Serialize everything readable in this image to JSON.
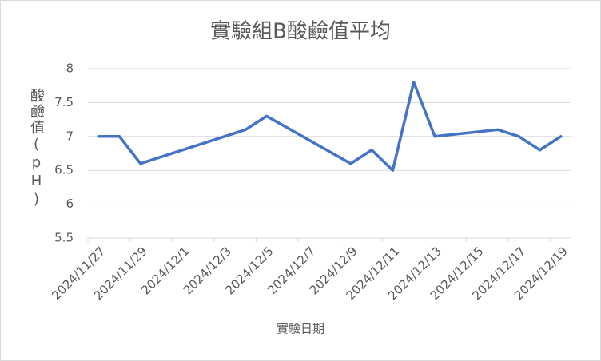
{
  "chart_data": {
    "type": "line",
    "title": "實驗組B酸鹼值平均",
    "x_label": "實驗日期",
    "y_label": "酸鹼值(pH)",
    "x": [
      "2024/11/27",
      "2024/11/28",
      "2024/11/29",
      "2024/12/4",
      "2024/12/5",
      "2024/12/9",
      "2024/12/10",
      "2024/12/11",
      "2024/12/12",
      "2024/12/13",
      "2024/12/16",
      "2024/12/17",
      "2024/12/18",
      "2024/12/19"
    ],
    "series": [
      {
        "name": "實驗組B",
        "color": "#4472c4",
        "values": [
          7.0,
          7.0,
          6.6,
          7.1,
          7.3,
          6.6,
          6.8,
          6.5,
          7.8,
          7.0,
          7.1,
          7.0,
          6.8,
          7.0
        ]
      }
    ],
    "xlim": [
      "2024/11/27",
      "2024/12/19"
    ],
    "xticks": [
      "2024/11/27",
      "2024/11/29",
      "2024/12/1",
      "2024/12/3",
      "2024/12/5",
      "2024/12/7",
      "2024/12/9",
      "2024/12/11",
      "2024/12/13",
      "2024/12/15",
      "2024/12/17",
      "2024/12/19"
    ],
    "ylim": [
      5.5,
      8
    ],
    "yticks": [
      5.5,
      6,
      6.5,
      7,
      7.5,
      8
    ],
    "grid": true
  }
}
